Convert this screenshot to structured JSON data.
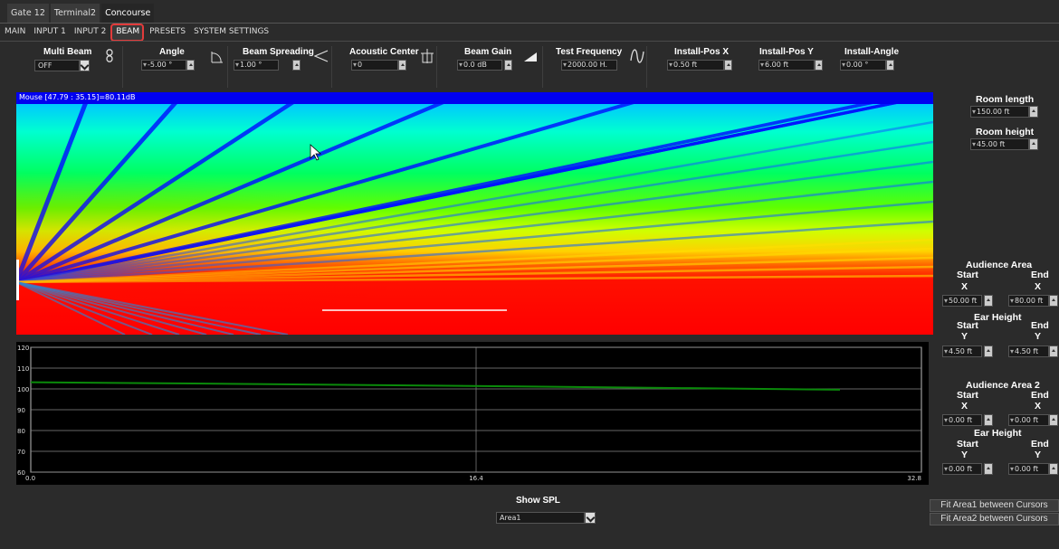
{
  "top_tabs": [
    "Gate 12",
    "Terminal2",
    "Concourse"
  ],
  "sub_tabs": [
    "MAIN",
    "INPUT 1",
    "INPUT 2",
    "BEAM",
    "PRESETS",
    "SYSTEM SETTINGS"
  ],
  "controls": {
    "multi_beam": {
      "label": "Multi Beam",
      "value": "OFF"
    },
    "angle": {
      "label": "Angle",
      "value": "-5.00 °"
    },
    "beam_spreading": {
      "label": "Beam Spreading",
      "value": "1.00 °"
    },
    "acoustic_center": {
      "label": "Acoustic Center",
      "value": "0"
    },
    "beam_gain": {
      "label": "Beam Gain",
      "value": "0.0 dB"
    },
    "test_frequency": {
      "label": "Test Frequency",
      "value": "2000.00 H."
    },
    "install_pos_x": {
      "label": "Install-Pos X",
      "value": "0.50 ft"
    },
    "install_pos_y": {
      "label": "Install-Pos Y",
      "value": "6.00 ft"
    },
    "install_angle": {
      "label": "Install-Angle",
      "value": "0.00 °"
    }
  },
  "mouse_readout": "Mouse [47.79 : 35.15]=80.11dB",
  "room": {
    "length_label": "Room length",
    "length_value": "150.00 ft",
    "height_label": "Room height",
    "height_value": "45.00 ft"
  },
  "audience_area": {
    "title": "Audience Area",
    "start": "Start",
    "end": "End",
    "x": "X",
    "y": "Y",
    "start_x": "50.00 ft",
    "end_x": "80.00 ft",
    "ear_height": "Ear Height",
    "start_y": "4.50 ft",
    "end_y": "4.50 ft"
  },
  "audience_area2": {
    "title": "Audience Area 2",
    "start": "Start",
    "end": "End",
    "x": "X",
    "y": "Y",
    "start_x": "0.00 ft",
    "end_x": "0.00 ft",
    "ear_height": "Ear Height",
    "start_y": "0.00 ft",
    "end_y": "0.00 ft"
  },
  "buttons": {
    "fit_area1": "Fit Area1 between Cursors",
    "fit_area2": "Fit Area2 between Cursors"
  },
  "show_spl": {
    "label": "Show SPL",
    "value": "Area1"
  },
  "colors": {
    "accent_highlight": "#e23b3b",
    "readout_bar": "#0000f0",
    "spl_line": "#0a8a0a"
  },
  "chart_data": {
    "type": "line",
    "title": "",
    "xlabel": "",
    "ylabel": "",
    "xlim": [
      0,
      32.8
    ],
    "ylim": [
      60,
      120
    ],
    "x_ticks": [
      "0.0",
      "16.4",
      "32.8"
    ],
    "y_ticks": [
      "60",
      "70",
      "80",
      "90",
      "100",
      "110",
      "120"
    ],
    "grid": true,
    "series": [
      {
        "x": [
          0.0,
          6,
          12,
          18,
          24,
          29.8
        ],
        "y": [
          103.2,
          102.6,
          101.9,
          101.2,
          100.4,
          99.6
        ]
      }
    ]
  }
}
